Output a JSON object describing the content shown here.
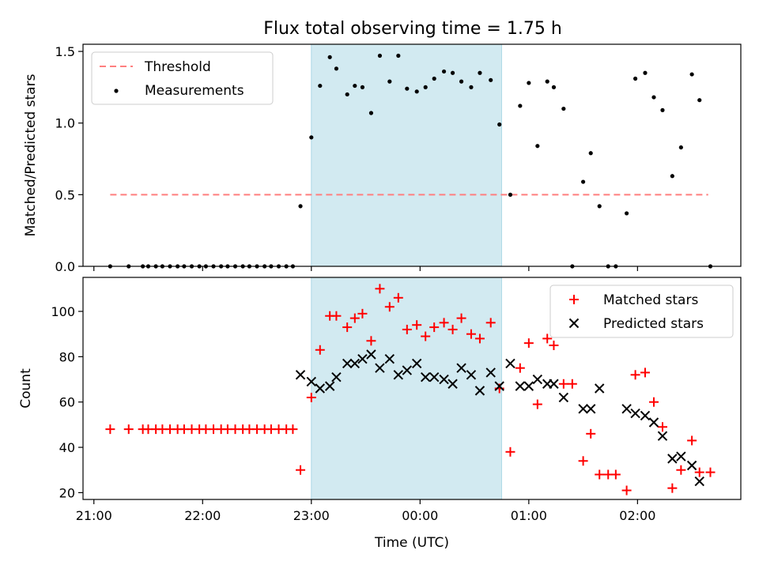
{
  "title": "Flux total observing time = 1.75 h",
  "colors": {
    "threshold": "#ff7f7f",
    "measurement": "#000000",
    "matched": "#ff0000",
    "predicted": "#000000",
    "span": "#add8e6"
  },
  "chart_data": [
    {
      "type": "scatter",
      "ylabel": "Matched/Predicted stars",
      "xlabel": "",
      "x_ticks": [
        "21:00",
        "22:00",
        "23:00",
        "00:00",
        "01:00",
        "02:00"
      ],
      "x_tick_hours": [
        21,
        22,
        23,
        24,
        25,
        26
      ],
      "xlim_hours": [
        20.9,
        26.95
      ],
      "ylim": [
        0,
        1.55
      ],
      "y_ticks": [
        0.0,
        0.5,
        1.0,
        1.5
      ],
      "y_tick_labels": [
        "0.0",
        "0.5",
        "1.0",
        "1.5"
      ],
      "highlight_span_hours": [
        23.0,
        24.75
      ],
      "legend": {
        "position": "upper left",
        "entries": [
          "Threshold",
          "Measurements"
        ]
      },
      "threshold": {
        "name": "Threshold",
        "value": 0.5,
        "x_hours": [
          21.15,
          26.65
        ]
      },
      "series": [
        {
          "name": "Measurements",
          "x_hours": [
            21.15,
            21.32,
            21.45,
            21.5,
            21.57,
            21.63,
            21.7,
            21.77,
            21.83,
            21.9,
            21.97,
            22.03,
            22.1,
            22.17,
            22.23,
            22.3,
            22.37,
            22.43,
            22.5,
            22.57,
            22.63,
            22.7,
            22.77,
            22.83,
            22.9,
            23.0,
            23.08,
            23.17,
            23.23,
            23.33,
            23.4,
            23.47,
            23.55,
            23.63,
            23.72,
            23.8,
            23.88,
            23.97,
            24.05,
            24.13,
            24.22,
            24.3,
            24.38,
            24.47,
            24.55,
            24.65,
            24.73,
            24.83,
            24.92,
            25.0,
            25.08,
            25.17,
            25.23,
            25.32,
            25.4,
            25.5,
            25.57,
            25.65,
            25.73,
            25.8,
            25.9,
            25.98,
            26.07,
            26.15,
            26.23,
            26.32,
            26.4,
            26.5,
            26.57,
            26.67
          ],
          "y": [
            0,
            0,
            0,
            0,
            0,
            0,
            0,
            0,
            0,
            0,
            0,
            0,
            0,
            0,
            0,
            0,
            0,
            0,
            0,
            0,
            0,
            0,
            0,
            0,
            0.42,
            0.9,
            1.26,
            1.46,
            1.38,
            1.2,
            1.26,
            1.25,
            1.07,
            1.47,
            1.29,
            1.47,
            1.24,
            1.22,
            1.25,
            1.31,
            1.36,
            1.35,
            1.29,
            1.25,
            1.35,
            1.3,
            0.99,
            0.5,
            1.12,
            1.28,
            0.84,
            1.29,
            1.25,
            1.1,
            0,
            0.59,
            0.79,
            0.42,
            0,
            0,
            0.37,
            1.31,
            1.35,
            1.18,
            1.09,
            0.63,
            0.83,
            1.34,
            1.16,
            0
          ]
        }
      ]
    },
    {
      "type": "scatter",
      "ylabel": "Count",
      "xlabel": "Time (UTC)",
      "x_ticks": [
        "21:00",
        "22:00",
        "23:00",
        "00:00",
        "01:00",
        "02:00"
      ],
      "x_tick_hours": [
        21,
        22,
        23,
        24,
        25,
        26
      ],
      "xlim_hours": [
        20.9,
        26.95
      ],
      "ylim": [
        17,
        115
      ],
      "y_ticks": [
        20,
        40,
        60,
        80,
        100
      ],
      "y_tick_labels": [
        "20",
        "40",
        "60",
        "80",
        "100"
      ],
      "highlight_span_hours": [
        23.0,
        24.75
      ],
      "legend": {
        "position": "upper right",
        "entries": [
          "Matched stars",
          "Predicted stars"
        ]
      },
      "series": [
        {
          "name": "Matched stars",
          "marker": "+",
          "x_hours": [
            21.15,
            21.32,
            21.45,
            21.5,
            21.57,
            21.63,
            21.7,
            21.77,
            21.83,
            21.9,
            21.97,
            22.03,
            22.1,
            22.17,
            22.23,
            22.3,
            22.37,
            22.43,
            22.5,
            22.57,
            22.63,
            22.7,
            22.77,
            22.83,
            22.9,
            23.0,
            23.08,
            23.17,
            23.23,
            23.33,
            23.4,
            23.47,
            23.55,
            23.63,
            23.72,
            23.8,
            23.88,
            23.97,
            24.05,
            24.13,
            24.22,
            24.3,
            24.38,
            24.47,
            24.55,
            24.65,
            24.73,
            24.83,
            24.92,
            25.0,
            25.08,
            25.17,
            25.23,
            25.32,
            25.4,
            25.5,
            25.57,
            25.65,
            25.73,
            25.8,
            25.9,
            25.98,
            26.07,
            26.15,
            26.23,
            26.32,
            26.4,
            26.5,
            26.57,
            26.67
          ],
          "y": [
            48,
            48,
            48,
            48,
            48,
            48,
            48,
            48,
            48,
            48,
            48,
            48,
            48,
            48,
            48,
            48,
            48,
            48,
            48,
            48,
            48,
            48,
            48,
            48,
            30,
            62,
            83,
            98,
            98,
            93,
            97,
            99,
            87,
            110,
            102,
            106,
            92,
            94,
            89,
            93,
            95,
            92,
            97,
            90,
            88,
            95,
            66,
            38,
            75,
            86,
            59,
            88,
            85,
            68,
            68,
            34,
            46,
            28,
            28,
            28,
            21,
            72,
            73,
            60,
            49,
            22,
            30,
            43,
            29,
            29
          ]
        },
        {
          "name": "Predicted stars",
          "marker": "x",
          "x_hours": [
            22.9,
            23.0,
            23.08,
            23.17,
            23.23,
            23.33,
            23.4,
            23.47,
            23.55,
            23.63,
            23.72,
            23.8,
            23.88,
            23.97,
            24.05,
            24.13,
            24.22,
            24.3,
            24.38,
            24.47,
            24.55,
            24.65,
            24.73,
            24.83,
            24.92,
            25.0,
            25.08,
            25.17,
            25.23,
            25.32,
            25.5,
            25.57,
            25.65,
            25.9,
            25.98,
            26.07,
            26.15,
            26.23,
            26.32,
            26.4,
            26.5,
            26.57
          ],
          "y": [
            72,
            69,
            66,
            67,
            71,
            77,
            77,
            79,
            81,
            75,
            79,
            72,
            74,
            77,
            71,
            71,
            70,
            68,
            75,
            72,
            65,
            73,
            67,
            77,
            67,
            67,
            70,
            68,
            68,
            62,
            57,
            57,
            66,
            57,
            55,
            54,
            51,
            45,
            35,
            36,
            32,
            25
          ]
        }
      ]
    }
  ]
}
